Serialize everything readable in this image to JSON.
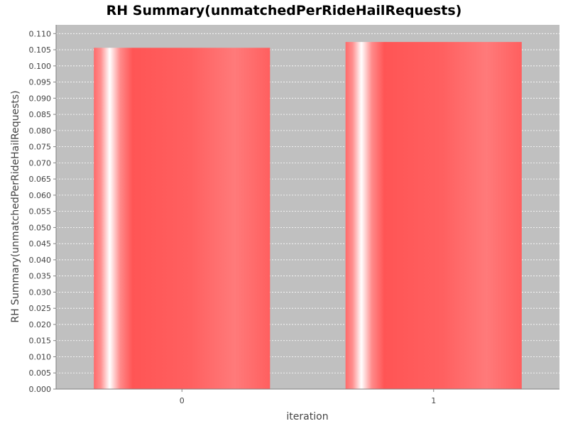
{
  "chart_data": {
    "type": "bar",
    "title": "RH Summary(unmatchedPerRideHailRequests)",
    "xlabel": "iteration",
    "ylabel": "RH Summary(unmatchedPerRideHailRequests)",
    "categories": [
      "0",
      "1"
    ],
    "values": [
      0.1056,
      0.1074
    ],
    "ylim": [
      0,
      0.1127
    ],
    "yticks": [
      0.0,
      0.005,
      0.01,
      0.015,
      0.02,
      0.025,
      0.03,
      0.035,
      0.04,
      0.045,
      0.05,
      0.055,
      0.06,
      0.065,
      0.07,
      0.075,
      0.08,
      0.085,
      0.09,
      0.095,
      0.1,
      0.105,
      0.11
    ],
    "ytick_labels": [
      "0.000",
      "0.005",
      "0.010",
      "0.015",
      "0.020",
      "0.025",
      "0.030",
      "0.035",
      "0.040",
      "0.045",
      "0.050",
      "0.055",
      "0.060",
      "0.065",
      "0.070",
      "0.075",
      "0.080",
      "0.085",
      "0.090",
      "0.095",
      "0.100",
      "0.105",
      "0.110"
    ],
    "grid": true,
    "legend": "none",
    "colors": {
      "plot_background": "#c0c0c0",
      "bar": "#ff5555",
      "gridline": "#ffffff"
    }
  }
}
